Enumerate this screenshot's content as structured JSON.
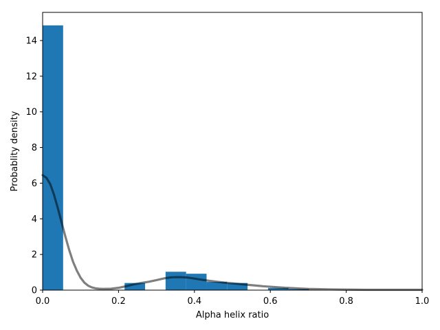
{
  "chart_data": {
    "type": "bar",
    "title": "",
    "xlabel": "Alpha helix ratio",
    "ylabel": "Probablity density",
    "xlim": [
      0,
      1
    ],
    "ylim": [
      0,
      15.58
    ],
    "grid": false,
    "legend": "none",
    "x_ticks": [
      {
        "value": 0.0,
        "label": "0.0"
      },
      {
        "value": 0.2,
        "label": "0.2"
      },
      {
        "value": 0.4,
        "label": "0.4"
      },
      {
        "value": 0.6,
        "label": "0.6"
      },
      {
        "value": 0.8,
        "label": "0.8"
      },
      {
        "value": 1.0,
        "label": "1.0"
      }
    ],
    "y_ticks": [
      {
        "value": 0,
        "label": "0"
      },
      {
        "value": 2,
        "label": "2"
      },
      {
        "value": 4,
        "label": "4"
      },
      {
        "value": 6,
        "label": "6"
      },
      {
        "value": 8,
        "label": "8"
      },
      {
        "value": 10,
        "label": "10"
      },
      {
        "value": 12,
        "label": "12"
      },
      {
        "value": 14,
        "label": "14"
      }
    ],
    "histogram": {
      "color": "#1f77b4",
      "bins": [
        {
          "x0": 0.0,
          "x1": 0.054,
          "value": 14.85
        },
        {
          "x0": 0.216,
          "x1": 0.27,
          "value": 0.4
        },
        {
          "x0": 0.324,
          "x1": 0.378,
          "value": 1.03
        },
        {
          "x0": 0.378,
          "x1": 0.432,
          "value": 0.92
        },
        {
          "x0": 0.432,
          "x1": 0.486,
          "value": 0.46
        },
        {
          "x0": 0.486,
          "x1": 0.54,
          "value": 0.4
        },
        {
          "x0": 0.594,
          "x1": 0.648,
          "value": 0.12
        },
        {
          "x0": 0.648,
          "x1": 0.702,
          "value": 0.06
        }
      ]
    },
    "density_curve": {
      "color": "#000000",
      "opacity": 0.5,
      "points": [
        [
          0.0,
          6.45
        ],
        [
          0.01,
          6.3
        ],
        [
          0.02,
          5.95
        ],
        [
          0.03,
          5.35
        ],
        [
          0.04,
          4.6
        ],
        [
          0.05,
          3.8
        ],
        [
          0.06,
          3.0
        ],
        [
          0.07,
          2.25
        ],
        [
          0.08,
          1.6
        ],
        [
          0.09,
          1.1
        ],
        [
          0.1,
          0.7
        ],
        [
          0.11,
          0.42
        ],
        [
          0.12,
          0.25
        ],
        [
          0.13,
          0.15
        ],
        [
          0.14,
          0.1
        ],
        [
          0.15,
          0.08
        ],
        [
          0.16,
          0.07
        ],
        [
          0.18,
          0.08
        ],
        [
          0.2,
          0.13
        ],
        [
          0.22,
          0.22
        ],
        [
          0.24,
          0.32
        ],
        [
          0.26,
          0.4
        ],
        [
          0.28,
          0.47
        ],
        [
          0.3,
          0.56
        ],
        [
          0.32,
          0.66
        ],
        [
          0.34,
          0.72
        ],
        [
          0.36,
          0.73
        ],
        [
          0.38,
          0.71
        ],
        [
          0.4,
          0.65
        ],
        [
          0.42,
          0.58
        ],
        [
          0.44,
          0.52
        ],
        [
          0.46,
          0.47
        ],
        [
          0.48,
          0.42
        ],
        [
          0.5,
          0.38
        ],
        [
          0.52,
          0.34
        ],
        [
          0.54,
          0.3
        ],
        [
          0.56,
          0.26
        ],
        [
          0.58,
          0.22
        ],
        [
          0.6,
          0.19
        ],
        [
          0.62,
          0.16
        ],
        [
          0.64,
          0.13
        ],
        [
          0.66,
          0.11
        ],
        [
          0.68,
          0.09
        ],
        [
          0.7,
          0.07
        ],
        [
          0.72,
          0.06
        ],
        [
          0.74,
          0.05
        ],
        [
          0.76,
          0.04
        ],
        [
          0.8,
          0.03
        ],
        [
          0.85,
          0.02
        ],
        [
          0.9,
          0.02
        ],
        [
          0.95,
          0.02
        ],
        [
          1.0,
          0.02
        ]
      ]
    }
  }
}
